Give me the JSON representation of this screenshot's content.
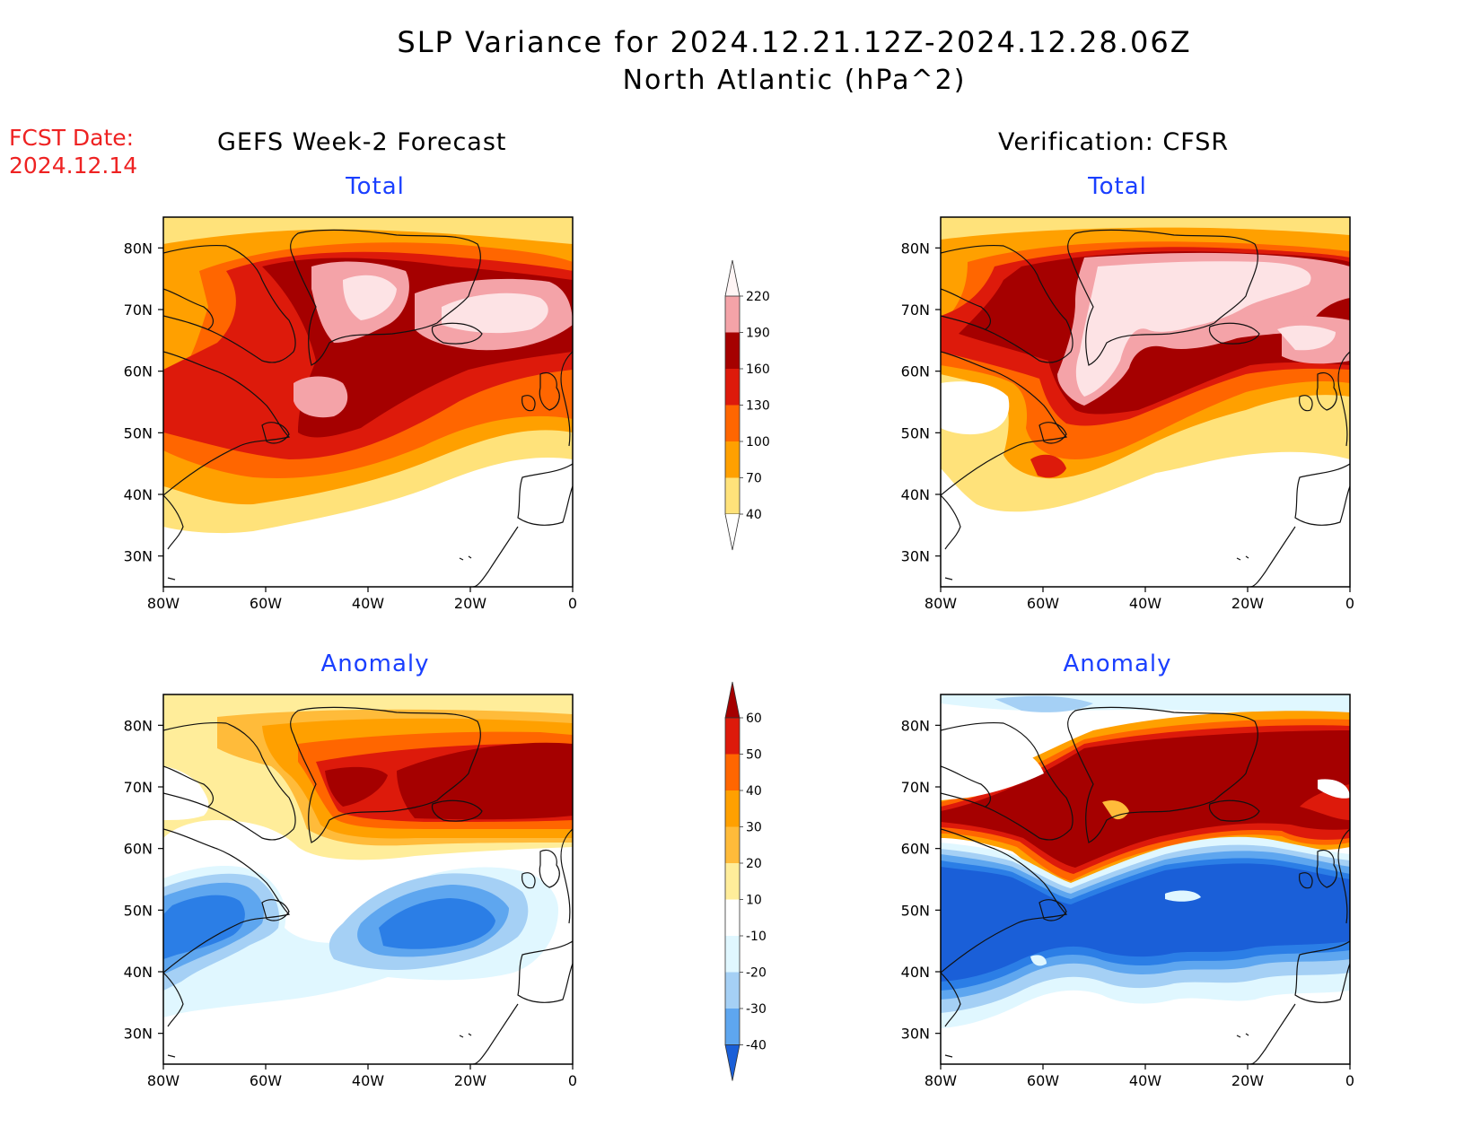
{
  "title": {
    "line1": "SLP Variance for 2024.12.21.12Z-2024.12.28.06Z",
    "line2": "North Atlantic (hPa^2)"
  },
  "fcst_date": {
    "label": "FCST Date:",
    "value": "2024.12.14"
  },
  "columns": {
    "left": "GEFS Week-2 Forecast",
    "right": "Verification: CFSR"
  },
  "panels": {
    "total_label": "Total",
    "anomaly_label": "Anomaly"
  },
  "axes": {
    "lat_ticks": [
      "80N",
      "70N",
      "60N",
      "50N",
      "40N",
      "30N"
    ],
    "lon_ticks": [
      "80W",
      "60W",
      "40W",
      "20W",
      "0"
    ]
  },
  "colorbars": {
    "total": {
      "levels": [
        "220",
        "190",
        "160",
        "130",
        "100",
        "70",
        "40"
      ],
      "colors": [
        "#f4a3a8",
        "#a50000",
        "#dd1a0b",
        "#ff6600",
        "#ffa000",
        "#ffe27a"
      ]
    },
    "anomaly": {
      "levels": [
        "60",
        "50",
        "40",
        "30",
        "20",
        "10",
        "-10",
        "-20",
        "-30",
        "-40"
      ],
      "colors_top": "#a50000",
      "colors": [
        "#dd1a0b",
        "#ff6600",
        "#ffa000",
        "#ffbb3a",
        "#ffed9a",
        "#ffffff",
        "#e0f7ff",
        "#a5d0f5",
        "#5ea6ef",
        "#2b7ee6"
      ],
      "colors_bottom": "#1a5fd8"
    }
  }
}
